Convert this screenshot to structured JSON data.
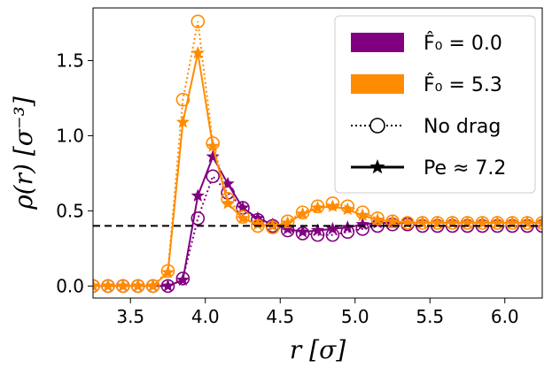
{
  "chart_data": {
    "type": "line",
    "xlabel": "r [σ]",
    "ylabel": "ρ(r) [σ⁻³]",
    "xlim": [
      3.25,
      6.25
    ],
    "ylim": [
      -0.08,
      1.85
    ],
    "x_ticks": [
      3.5,
      4.0,
      4.5,
      5.0,
      5.5,
      6.0
    ],
    "x_tick_labels": [
      "3.5",
      "4.0",
      "4.5",
      "5.0",
      "5.5",
      "6.0"
    ],
    "y_ticks": [
      0.0,
      0.5,
      1.0,
      1.5
    ],
    "y_tick_labels": [
      "0.0",
      "0.5",
      "1.0",
      "1.5"
    ],
    "reference_line": {
      "y": 0.4,
      "style": "dashed",
      "color": "#000000"
    },
    "grid": false,
    "legend_position": "top-right",
    "legend": [
      {
        "label": "F̂₀ = 0.0",
        "kind": "patch",
        "color": "#800080"
      },
      {
        "label": "F̂₀ = 5.3",
        "kind": "patch",
        "color": "#ff8c00"
      },
      {
        "label": "No drag",
        "kind": "line-dotted-circle",
        "color": "#000000"
      },
      {
        "label": "Pe ≈ 7.2",
        "kind": "line-solid-star",
        "color": "#000000"
      }
    ],
    "x": [
      3.25,
      3.35,
      3.45,
      3.55,
      3.65,
      3.75,
      3.85,
      3.95,
      4.05,
      4.15,
      4.25,
      4.35,
      4.45,
      4.55,
      4.65,
      4.75,
      4.85,
      4.95,
      5.05,
      5.15,
      5.25,
      5.35,
      5.45,
      5.55,
      5.65,
      5.75,
      5.85,
      5.95,
      6.05,
      6.15,
      6.25
    ],
    "series": [
      {
        "color": "#800080",
        "style": "dotted",
        "marker": "circle",
        "values": [
          0.0,
          0.0,
          0.0,
          0.0,
          0.0,
          0.0,
          0.05,
          0.45,
          0.73,
          0.62,
          0.52,
          0.44,
          0.4,
          0.37,
          0.35,
          0.34,
          0.34,
          0.36,
          0.38,
          0.4,
          0.41,
          0.41,
          0.4,
          0.4,
          0.4,
          0.4,
          0.4,
          0.4,
          0.4,
          0.4,
          0.4
        ]
      },
      {
        "color": "#800080",
        "style": "solid",
        "marker": "star",
        "values": [
          0.0,
          0.0,
          0.0,
          0.0,
          0.0,
          0.0,
          0.04,
          0.6,
          0.86,
          0.68,
          0.52,
          0.45,
          0.41,
          0.38,
          0.36,
          0.37,
          0.38,
          0.39,
          0.41,
          0.42,
          0.42,
          0.42,
          0.42,
          0.42,
          0.42,
          0.42,
          0.42,
          0.42,
          0.42,
          0.42,
          0.42
        ]
      },
      {
        "color": "#ff8c00",
        "style": "dotted",
        "marker": "circle",
        "values": [
          0.0,
          0.0,
          0.0,
          0.0,
          0.0,
          0.1,
          1.24,
          1.76,
          0.95,
          0.58,
          0.46,
          0.4,
          0.39,
          0.43,
          0.49,
          0.53,
          0.55,
          0.53,
          0.49,
          0.45,
          0.43,
          0.42,
          0.42,
          0.42,
          0.42,
          0.42,
          0.42,
          0.42,
          0.42,
          0.42,
          0.42
        ]
      },
      {
        "color": "#ff8c00",
        "style": "solid",
        "marker": "star",
        "values": [
          0.0,
          0.0,
          0.0,
          0.0,
          0.0,
          0.09,
          1.09,
          1.55,
          0.93,
          0.55,
          0.45,
          0.41,
          0.4,
          0.42,
          0.48,
          0.52,
          0.53,
          0.51,
          0.47,
          0.44,
          0.43,
          0.42,
          0.42,
          0.42,
          0.42,
          0.42,
          0.42,
          0.42,
          0.42,
          0.42,
          0.42
        ]
      }
    ]
  }
}
